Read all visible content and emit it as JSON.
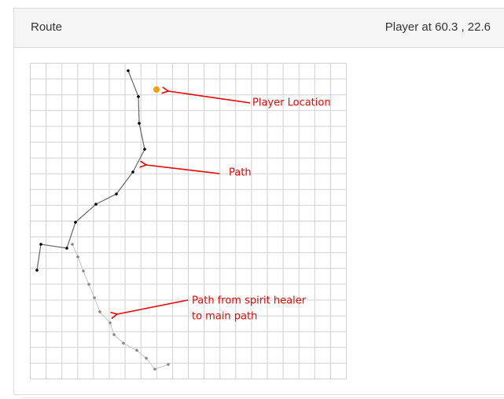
{
  "header": {
    "title": "Route",
    "status": "Player at 60.3 , 22.6"
  },
  "annotations": [
    {
      "lines": [
        "Player Location"
      ]
    },
    {
      "lines": [
        "Path"
      ]
    },
    {
      "lines": [
        "Path from spirit healer",
        "to main path"
      ]
    }
  ]
}
